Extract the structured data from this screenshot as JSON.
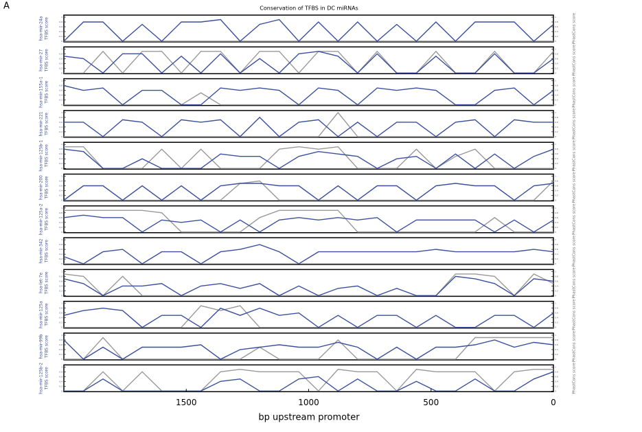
{
  "figure": {
    "label": "A",
    "title": "Conservation of TFBS in DC miRNAs",
    "xlabel": "bp upstream promoter"
  },
  "x": [
    2000,
    1920,
    1840,
    1760,
    1680,
    1600,
    1520,
    1440,
    1360,
    1280,
    1200,
    1120,
    1040,
    960,
    880,
    800,
    720,
    640,
    560,
    480,
    400,
    320,
    240,
    160,
    80,
    0
  ],
  "chart_data": [
    {
      "type": "line",
      "name": "hsa-mir-24a",
      "ylabel": "TFBS score",
      "y2label": "PhastCons score",
      "xlim": [
        2000,
        0
      ],
      "ylim": [
        0,
        1
      ],
      "yticks": [
        0,
        0.2,
        0.4,
        0.6,
        0.8,
        1
      ],
      "y2lim": [
        0,
        1
      ],
      "y2ticks": [
        0,
        0.2,
        0.4,
        0.6,
        0.8,
        1
      ],
      "series": [
        {
          "color": "#3a4f9e",
          "values": [
            0,
            0.8,
            0.8,
            0,
            0.7,
            0,
            0.8,
            0.8,
            0.9,
            0,
            0.7,
            0.9,
            0,
            0.8,
            0,
            0.8,
            0,
            0.7,
            0,
            0.8,
            0,
            0.8,
            0.8,
            0.8,
            0,
            0.7
          ]
        },
        {
          "color": "#999999",
          "axis": "y2",
          "values": [
            0,
            0,
            0,
            0,
            0,
            0,
            0,
            0,
            0,
            0,
            0,
            0,
            0,
            0,
            0,
            0,
            0,
            0,
            0,
            0,
            0,
            0,
            0,
            0,
            0,
            0
          ]
        }
      ]
    },
    {
      "type": "line",
      "name": "hsa-mir-27",
      "ylabel": "TFBS score",
      "y2label": "PhastCons score",
      "xlim": [
        2000,
        0
      ],
      "ylim": [
        0,
        1
      ],
      "yticks": [
        0,
        0.2,
        0.4,
        0.6,
        0.8,
        1
      ],
      "y2lim": [
        0,
        1
      ],
      "y2ticks": [
        0,
        0.2,
        0.4,
        0.6,
        0.8,
        1
      ],
      "series": [
        {
          "color": "#3a4f9e",
          "values": [
            0.7,
            0.6,
            0,
            0.8,
            0.8,
            0,
            0.7,
            0,
            0.8,
            0,
            0.6,
            0,
            0.8,
            0.9,
            0.7,
            0,
            0.8,
            0,
            0,
            0.7,
            0,
            0,
            0.8,
            0,
            0,
            0.6
          ]
        },
        {
          "color": "#999999",
          "axis": "y2",
          "values": [
            0,
            0,
            0.9,
            0,
            0.9,
            0.9,
            0,
            0.9,
            0.9,
            0,
            0.9,
            0.9,
            0,
            0.9,
            0.9,
            0,
            0.9,
            0,
            0,
            0.9,
            0,
            0,
            0.9,
            0,
            0,
            0.9
          ]
        }
      ]
    },
    {
      "type": "line",
      "name": "hsa-mir-155a-1",
      "ylabel": "TFBS score",
      "y2label": "PhastCons score",
      "xlim": [
        2000,
        0
      ],
      "ylim": [
        0,
        1
      ],
      "yticks": [
        0,
        0.2,
        0.4,
        0.6,
        0.8,
        1
      ],
      "y2lim": [
        0,
        1
      ],
      "y2ticks": [
        0,
        0.2,
        0.4,
        0.6,
        0.8,
        1
      ],
      "series": [
        {
          "color": "#3a4f9e",
          "values": [
            0.8,
            0.6,
            0.7,
            0,
            0.6,
            0.6,
            0,
            0,
            0.7,
            0.6,
            0.7,
            0.6,
            0,
            0.7,
            0.6,
            0,
            0.7,
            0.6,
            0.7,
            0.6,
            0,
            0,
            0.6,
            0.7,
            0,
            0.6
          ]
        },
        {
          "color": "#999999",
          "axis": "y2",
          "values": [
            0,
            0,
            0,
            0,
            0,
            0,
            0,
            0.5,
            0,
            0,
            0,
            0,
            0,
            0,
            0,
            0,
            0,
            0,
            0,
            0,
            0,
            0,
            0,
            0,
            0,
            0
          ]
        }
      ]
    },
    {
      "type": "line",
      "name": "hsa-mir-221",
      "ylabel": "TFBS score",
      "y2label": "PhastCons score",
      "xlim": [
        2000,
        0
      ],
      "ylim": [
        0,
        1
      ],
      "yticks": [
        0,
        0.2,
        0.4,
        0.6,
        0.8,
        1
      ],
      "y2lim": [
        0,
        1
      ],
      "y2ticks": [
        0,
        0.2,
        0.4,
        0.6,
        0.8,
        1
      ],
      "series": [
        {
          "color": "#3a4f9e",
          "values": [
            0.6,
            0.6,
            0,
            0.7,
            0.6,
            0,
            0.7,
            0.6,
            0.7,
            0,
            0.8,
            0,
            0.6,
            0.7,
            0,
            0.6,
            0,
            0.6,
            0.6,
            0,
            0.6,
            0.7,
            0,
            0.7,
            0.6,
            0.6
          ]
        },
        {
          "color": "#999999",
          "axis": "y2",
          "values": [
            0,
            0,
            0,
            0,
            0,
            0,
            0,
            0,
            0,
            0,
            0,
            0,
            0,
            0,
            1,
            0,
            0,
            0,
            0,
            0,
            0,
            0,
            0,
            0,
            0,
            0
          ]
        }
      ]
    },
    {
      "type": "line",
      "name": "hsa-mir-125b-1",
      "ylabel": "TFBS score",
      "y2label": "PhastCons score",
      "xlim": [
        2000,
        0
      ],
      "ylim": [
        0,
        1
      ],
      "yticks": [
        0,
        0.2,
        0.4,
        0.6,
        0.8,
        1
      ],
      "y2lim": [
        0,
        1
      ],
      "y2ticks": [
        0,
        0.2,
        0.4,
        0.6,
        0.8,
        1
      ],
      "series": [
        {
          "color": "#3a4f9e",
          "values": [
            0.8,
            0.7,
            0,
            0,
            0.4,
            0,
            0,
            0,
            0.6,
            0.5,
            0.5,
            0,
            0.5,
            0.7,
            0.6,
            0.5,
            0,
            0.4,
            0.5,
            0,
            0.6,
            0,
            0.6,
            0,
            0.5,
            0.8
          ]
        },
        {
          "color": "#999999",
          "axis": "y2",
          "values": [
            0.9,
            0.9,
            0,
            0,
            0,
            0.8,
            0,
            0.8,
            0,
            0,
            0,
            0.8,
            0.9,
            0.8,
            0.9,
            0,
            0,
            0,
            0.8,
            0,
            0.5,
            0.8,
            0,
            0,
            0,
            0
          ]
        }
      ]
    },
    {
      "type": "line",
      "name": "hsa-mir-200",
      "ylabel": "TFBS score",
      "y2label": "PhastCons score",
      "xlim": [
        2000,
        0
      ],
      "ylim": [
        0,
        1
      ],
      "yticks": [
        0,
        0.2,
        0.4,
        0.6,
        0.8,
        1
      ],
      "y2lim": [
        0,
        1
      ],
      "y2ticks": [
        0,
        0.2,
        0.4,
        0.6,
        0.8,
        1
      ],
      "series": [
        {
          "color": "#3a4f9e",
          "values": [
            0,
            0.6,
            0.6,
            0,
            0.6,
            0,
            0.6,
            0,
            0.6,
            0.7,
            0.7,
            0.6,
            0.6,
            0,
            0.6,
            0,
            0.6,
            0.6,
            0,
            0.6,
            0.7,
            0.6,
            0.6,
            0,
            0.6,
            0.7
          ]
        },
        {
          "color": "#999999",
          "axis": "y2",
          "values": [
            0,
            0,
            0,
            0,
            0,
            0,
            0,
            0,
            0,
            0.7,
            0.8,
            0,
            0,
            0,
            0,
            0,
            0,
            0,
            0,
            0,
            0,
            0,
            0,
            0,
            0,
            0.8
          ]
        }
      ]
    },
    {
      "type": "line",
      "name": "hsa-mir-125a-2",
      "ylabel": "TFBS score",
      "y2label": "PhastCons score",
      "xlim": [
        2000,
        0
      ],
      "ylim": [
        0,
        1
      ],
      "yticks": [
        0,
        0.2,
        0.4,
        0.6,
        0.8,
        1
      ],
      "y2lim": [
        0,
        1
      ],
      "y2ticks": [
        0,
        0.2,
        0.4,
        0.6,
        0.8,
        1
      ],
      "series": [
        {
          "color": "#3a4f9e",
          "values": [
            0.6,
            0.7,
            0.6,
            0.6,
            0,
            0.5,
            0.4,
            0.5,
            0,
            0.5,
            0,
            0.5,
            0.6,
            0.5,
            0.6,
            0.5,
            0.6,
            0,
            0.5,
            0.5,
            0.5,
            0.5,
            0,
            0.5,
            0,
            0.5
          ]
        },
        {
          "color": "#999999",
          "axis": "y2",
          "values": [
            0.9,
            0.9,
            0.9,
            0.9,
            0.9,
            0.8,
            0,
            0,
            0,
            0,
            0.6,
            0.9,
            0.9,
            0.9,
            0.9,
            0,
            0,
            0,
            0,
            0,
            0,
            0,
            0.6,
            0,
            0,
            0
          ]
        }
      ]
    },
    {
      "type": "line",
      "name": "hsa-mir-342",
      "ylabel": "TFBS score",
      "y2label": "PhastCons score",
      "xlim": [
        2000,
        0
      ],
      "ylim": [
        0,
        1
      ],
      "yticks": [
        0,
        0.2,
        0.4,
        0.6,
        0.8,
        1
      ],
      "y2lim": [
        0,
        1
      ],
      "y2ticks": [
        0,
        0.2,
        0.4,
        0.6,
        0.8,
        1
      ],
      "series": [
        {
          "color": "#3a4f9e",
          "values": [
            0.3,
            0,
            0.5,
            0.6,
            0,
            0.5,
            0.5,
            0,
            0.5,
            0.6,
            0.8,
            0.5,
            0,
            0.5,
            0.5,
            0.5,
            0.5,
            0.5,
            0.5,
            0.6,
            0.5,
            0.5,
            0.5,
            0.5,
            0.6,
            0.5
          ]
        },
        {
          "color": "#999999",
          "axis": "y2",
          "values": [
            0,
            0,
            0,
            0,
            0,
            0,
            0,
            0,
            0,
            0,
            0,
            0,
            0,
            0,
            0,
            0,
            0,
            0,
            0,
            0,
            0,
            0,
            0,
            0,
            0,
            0
          ]
        }
      ]
    },
    {
      "type": "line",
      "name": "hsa-let-7e",
      "ylabel": "TFBS score",
      "y2label": "PhastCons score",
      "xlim": [
        2000,
        0
      ],
      "ylim": [
        0,
        1
      ],
      "yticks": [
        0,
        0.2,
        0.4,
        0.6,
        0.8,
        1
      ],
      "y2lim": [
        0,
        1
      ],
      "y2ticks": [
        0,
        0.2,
        0.4,
        0.6,
        0.8,
        1
      ],
      "series": [
        {
          "color": "#3a4f9e",
          "values": [
            0.7,
            0.5,
            0,
            0.4,
            0.4,
            0.5,
            0,
            0.4,
            0.5,
            0.3,
            0.5,
            0,
            0.4,
            0,
            0.3,
            0.4,
            0,
            0.3,
            0,
            0,
            0.8,
            0.7,
            0.5,
            0,
            0.7,
            0.6
          ]
        },
        {
          "color": "#999999",
          "axis": "y2",
          "values": [
            0.9,
            0.8,
            0,
            0.8,
            0,
            0,
            0,
            0,
            0,
            0,
            0,
            0,
            0,
            0,
            0,
            0,
            0,
            0,
            0,
            0,
            0.9,
            0.9,
            0.8,
            0,
            0.9,
            0.5
          ]
        }
      ]
    },
    {
      "type": "line",
      "name": "hsa-mir-125a",
      "ylabel": "TFBS score",
      "y2label": "PhastCons score",
      "xlim": [
        2000,
        0
      ],
      "ylim": [
        0,
        1
      ],
      "yticks": [
        0,
        0.2,
        0.4,
        0.6,
        0.8,
        1
      ],
      "y2lim": [
        0,
        1
      ],
      "y2ticks": [
        0,
        0.2,
        0.4,
        0.6,
        0.8,
        1
      ],
      "series": [
        {
          "color": "#3a4f9e",
          "values": [
            0.5,
            0.7,
            0.8,
            0.7,
            0,
            0.5,
            0.5,
            0,
            0.8,
            0.5,
            0.8,
            0.5,
            0.6,
            0,
            0.5,
            0,
            0.5,
            0.5,
            0,
            0.5,
            0,
            0,
            0.5,
            0.5,
            0,
            0.6
          ]
        },
        {
          "color": "#999999",
          "axis": "y2",
          "values": [
            0,
            0,
            0,
            0,
            0,
            0,
            0,
            0.9,
            0.7,
            0.9,
            0,
            0,
            0,
            0,
            0,
            0,
            0,
            0,
            0,
            0,
            0,
            0,
            0,
            0,
            0,
            0
          ]
        }
      ]
    },
    {
      "type": "line",
      "name": "hsa-mir-99b",
      "ylabel": "TFBS score",
      "y2label": "PhastCons score",
      "xlim": [
        2000,
        0
      ],
      "ylim": [
        0,
        1
      ],
      "yticks": [
        0,
        0.2,
        0.4,
        0.6,
        0.8,
        1
      ],
      "y2lim": [
        0,
        1
      ],
      "y2ticks": [
        0,
        0.2,
        0.4,
        0.6,
        0.8,
        1
      ],
      "series": [
        {
          "color": "#3a4f9e",
          "values": [
            0.8,
            0,
            0.5,
            0,
            0.5,
            0.5,
            0.5,
            0.6,
            0,
            0.4,
            0.5,
            0.6,
            0.5,
            0.5,
            0.7,
            0.5,
            0,
            0.5,
            0,
            0.5,
            0.5,
            0.6,
            0.8,
            0.5,
            0.7,
            0.6
          ]
        },
        {
          "color": "#999999",
          "axis": "y2",
          "values": [
            0,
            0,
            0.9,
            0,
            0,
            0,
            0,
            0,
            0,
            0,
            0.5,
            0,
            0,
            0,
            0.8,
            0,
            0,
            0,
            0,
            0,
            0,
            0.9,
            0.9,
            0.9,
            0.9,
            0.9
          ]
        }
      ]
    },
    {
      "type": "line",
      "name": "hsa-mir-125b-2",
      "ylabel": "TFBS score",
      "y2label": "PhastCons score",
      "xlim": [
        2000,
        0
      ],
      "ylim": [
        0,
        1
      ],
      "yticks": [
        0,
        0.2,
        0.4,
        0.6,
        0.8,
        1
      ],
      "y2lim": [
        0,
        1
      ],
      "y2ticks": [
        0,
        0.2,
        0.4,
        0.6,
        0.8,
        1
      ],
      "xticks": [
        1500,
        1000,
        500,
        0
      ],
      "series": [
        {
          "color": "#3a4f9e",
          "values": [
            0,
            0,
            0.5,
            0,
            0,
            0,
            0,
            0,
            0.4,
            0.5,
            0,
            0,
            0.5,
            0.6,
            0,
            0.5,
            0,
            0,
            0.4,
            0,
            0,
            0.5,
            0,
            0,
            0.5,
            0.8
          ]
        },
        {
          "color": "#999999",
          "axis": "y2",
          "values": [
            0,
            0,
            0.8,
            0,
            0.8,
            0,
            0,
            0,
            0.8,
            0.9,
            0.8,
            0.8,
            0.8,
            0,
            0.9,
            0.8,
            0.8,
            0,
            0.9,
            0.8,
            0.8,
            0.8,
            0,
            0.8,
            0.9,
            0.9
          ]
        }
      ]
    }
  ]
}
